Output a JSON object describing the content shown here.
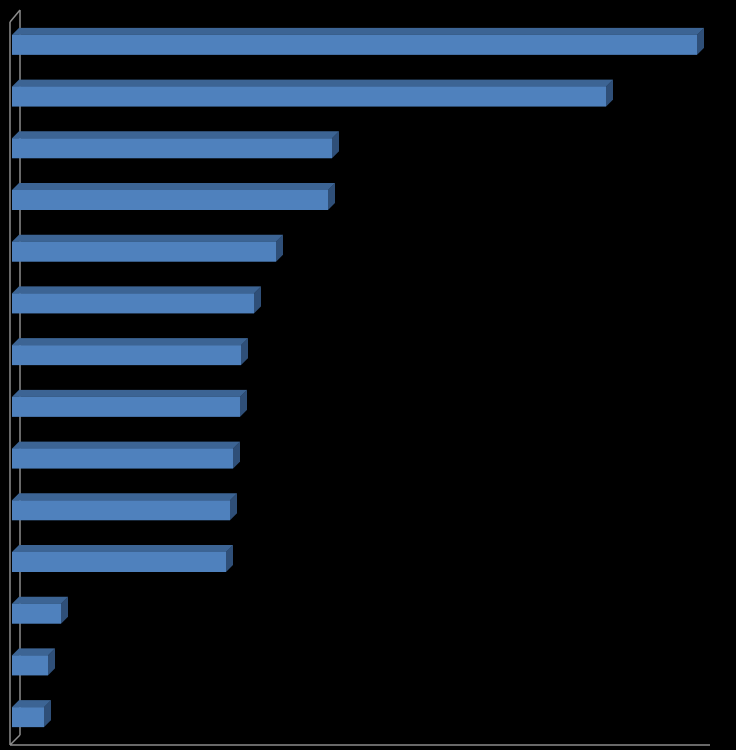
{
  "chart_data": {
    "type": "bar3d-horizontal",
    "categories": [
      null,
      null,
      null,
      null,
      null,
      null,
      null,
      null,
      null,
      null,
      null,
      null,
      null,
      null
    ],
    "values": [
      685,
      594,
      320,
      316,
      264,
      242,
      229,
      228,
      221,
      218,
      214,
      49,
      36,
      32
    ],
    "color": "#4f81bd",
    "xlim": [
      0,
      700
    ]
  }
}
